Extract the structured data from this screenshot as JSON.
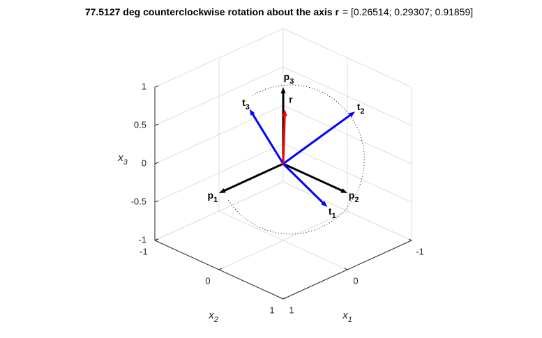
{
  "chart_data": {
    "type": "vector3d",
    "title": {
      "bold": "77.5127 deg counterclockwise rotation about the axis r",
      "normal": "= [0.26514; 0.29307; 0.91859]"
    },
    "xlabel": {
      "text": "x",
      "sub": "1"
    },
    "ylabel": {
      "text": "x",
      "sub": "2"
    },
    "zlabel": {
      "text": "x",
      "sub": "3"
    },
    "xlim": [
      -1,
      1
    ],
    "ylim": [
      -1,
      1
    ],
    "zlim": [
      -1,
      1
    ],
    "xticks": [
      -1,
      0,
      1
    ],
    "yticks": [
      -1,
      0,
      1
    ],
    "zticks": [
      -1,
      -0.5,
      0,
      0.5,
      1
    ],
    "grid": true,
    "vectors": [
      {
        "label": "p",
        "sub": "1",
        "color": "#000000",
        "values": [
          1,
          0,
          0
        ]
      },
      {
        "label": "p",
        "sub": "2",
        "color": "#000000",
        "values": [
          0,
          1,
          0
        ]
      },
      {
        "label": "p",
        "sub": "3",
        "color": "#000000",
        "values": [
          0,
          0,
          1
        ]
      },
      {
        "label": "t",
        "sub": "1",
        "color": "#0000ff",
        "values": [
          0.2715,
          0.9577,
          -0.0952
        ]
      },
      {
        "label": "t",
        "sub": "2",
        "color": "#0000ff",
        "values": [
          -0.8359,
          0.2837,
          0.4699
        ]
      },
      {
        "label": "t",
        "sub": "3",
        "color": "#0000ff",
        "values": [
          0.477,
          -0.0479,
          0.8776
        ]
      },
      {
        "label": "r",
        "color": "#ff0000",
        "values": [
          0.26514,
          0.29307,
          0.91859
        ]
      }
    ]
  }
}
